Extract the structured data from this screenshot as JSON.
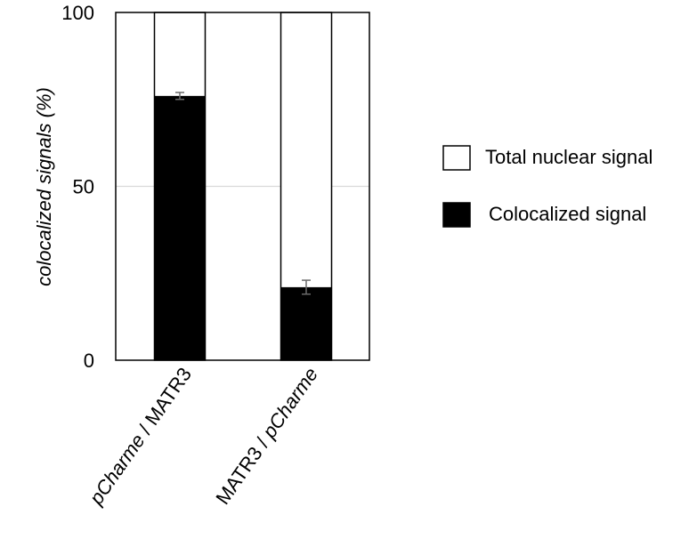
{
  "chart_data": {
    "type": "bar",
    "stacked": false,
    "categories": [
      {
        "parts": [
          {
            "text": "pCharme",
            "italic": true
          },
          {
            "text": " / MATR3",
            "italic": false
          }
        ]
      },
      {
        "parts": [
          {
            "text": "MATR3 / ",
            "italic": false
          },
          {
            "text": "pCharme",
            "italic": true
          }
        ]
      }
    ],
    "series": [
      {
        "name": "Total nuclear signal",
        "values": [
          100,
          100
        ],
        "color": "#ffffff",
        "outline": "#000000"
      },
      {
        "name": "Colocalized signal",
        "values": [
          76,
          21
        ],
        "errors": [
          1,
          2
        ],
        "color": "#000000"
      }
    ],
    "ylabel": "colocalized signals (%)",
    "ylim": [
      0,
      100
    ],
    "yticks": [
      0,
      50,
      100
    ],
    "grid": true,
    "gridColor": "#d9d9d9",
    "errorBarColor": "#6b6b6b",
    "legend_position": "right"
  }
}
